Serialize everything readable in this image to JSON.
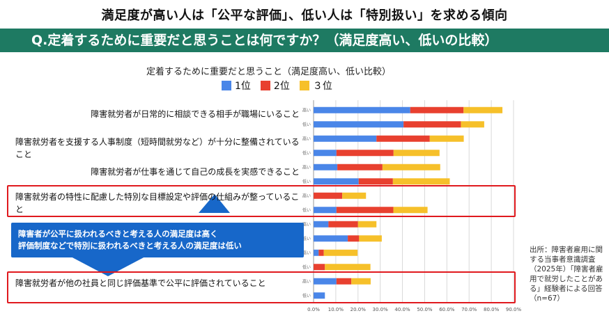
{
  "headline": "満足度が高い人は「公平な評価」、低い人は「特別扱い」を求める傾向",
  "question": "Q.定着するために重要だと思うことは何ですか？（満足度高い、低いの比較）",
  "items": [
    "障害就労者が日常的に相談できる相手が職場にいること",
    "障害就労者を支援する人事制度（短時間就労など）が十分に整備されていること",
    "障害就労者が仕事を通じて自己の成長を実感できること",
    "障害就労者の特性に配慮した特別な目標設定や評価の仕組みが整っていること",
    "障害就労者が他の社員と同じ評価基準で公平に評価されていること"
  ],
  "callout": {
    "line1": "障害者が公平に扱われるべきと考える人の満足度は高く",
    "line2": "評価制度などで特別に扱われるべきと考える人の満足度は低い"
  },
  "note": "出所：障害者雇用に関する当事者意識調査（2025年）「障害者雇用で就労したことがある」経験者による回答",
  "note_n": "（n=67）",
  "colors": {
    "rank1": "#4a86e8",
    "rank2": "#e8402f",
    "rank3": "#f6c02a",
    "accent_bar": "#1e7a62",
    "highlight": "#e0191e",
    "callout_bg": "#1767c9"
  },
  "chart_data": {
    "type": "bar",
    "orientation": "horizontal",
    "stacked": true,
    "title": "定着するために重要だと思うこと（満足度高い、低い比較）",
    "legend": [
      "1位",
      "2位",
      "３位"
    ],
    "legend_position": "top",
    "xlim": [
      0,
      90
    ],
    "x_ticks": [
      "0.0%",
      "10.0%",
      "20.0%",
      "30.0%",
      "40.0%",
      "50.0%",
      "60.0%",
      "70.0%",
      "80.0%",
      "90.0%"
    ],
    "rows": [
      {
        "label": "高い",
        "values": [
          43.5,
          24.0,
          17.5
        ]
      },
      {
        "label": "低い",
        "values": [
          40.5,
          25.8,
          10.5
        ]
      },
      {
        "label": "高い",
        "values": [
          28.3,
          24.0,
          15.3
        ]
      },
      {
        "label": "低い",
        "values": [
          10.3,
          25.7,
          20.7
        ]
      },
      {
        "label": "高い",
        "values": [
          10.7,
          20.3,
          26.0
        ]
      },
      {
        "label": "低い",
        "values": [
          20.3,
          15.4,
          25.6
        ]
      },
      {
        "label": "高い",
        "values": [
          0,
          12.9,
          10.7
        ]
      },
      {
        "label": "低い",
        "values": [
          10.3,
          25.6,
          15.4
        ]
      },
      {
        "label": "高い",
        "values": [
          6.7,
          13.3,
          8.3
        ]
      },
      {
        "label": "低い",
        "values": [
          15.4,
          5.1,
          10.2
        ]
      },
      {
        "label": "高い",
        "values": [
          2.3,
          2.3,
          15.2
        ]
      },
      {
        "label": "低い",
        "values": [
          0,
          5.1,
          20.5
        ]
      },
      {
        "label": "高い",
        "values": [
          10.3,
          6.7,
          8.7
        ]
      },
      {
        "label": "低い",
        "values": [
          5.1,
          0,
          0
        ]
      }
    ]
  }
}
